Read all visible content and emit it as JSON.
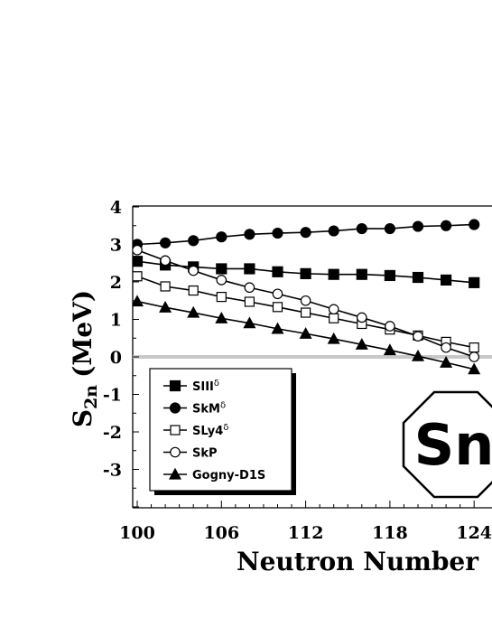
{
  "chart_data": {
    "type": "line",
    "xlabel": "Neutron Number",
    "ylabel": "S",
    "ylabel_sub": "2n",
    "ylabel_unit": "(MeV)",
    "xlim": [
      100,
      123
    ],
    "ylim": [
      -4,
      4
    ],
    "xticks": [
      100,
      106,
      112,
      118,
      124
    ],
    "xtick_labels": [
      "100",
      "106",
      "112",
      "118",
      "124"
    ],
    "yticks": [
      -3,
      -2,
      -1,
      0,
      1,
      2,
      3,
      4
    ],
    "ytick_labels": [
      "-3",
      "-2",
      "-1",
      "0",
      "1",
      "2",
      "3",
      "4"
    ],
    "zero_line": true,
    "legend_position": "lower-left",
    "badge": "Sn",
    "series": [
      {
        "name": "SIII",
        "name_sup": "δ",
        "marker": "square-filled",
        "x": [
          100,
          102,
          104,
          106,
          108,
          110,
          112,
          114,
          116,
          118,
          120,
          122,
          124
        ],
        "y": [
          2.55,
          2.45,
          2.4,
          2.35,
          2.35,
          2.27,
          2.22,
          2.2,
          2.2,
          2.17,
          2.12,
          2.05,
          1.98
        ]
      },
      {
        "name": "SkM",
        "name_sup": "δ",
        "marker": "circle-filled",
        "x": [
          100,
          102,
          104,
          106,
          108,
          110,
          112,
          114,
          116,
          118,
          120,
          122,
          124
        ],
        "y": [
          3.0,
          3.04,
          3.1,
          3.2,
          3.27,
          3.3,
          3.32,
          3.36,
          3.42,
          3.42,
          3.48,
          3.5,
          3.53
        ]
      },
      {
        "name": "SLy4",
        "name_sup": "δ",
        "marker": "square-open",
        "x": [
          100,
          102,
          104,
          106,
          108,
          110,
          112,
          114,
          116,
          118,
          120,
          122,
          124
        ],
        "y": [
          2.15,
          1.88,
          1.77,
          1.6,
          1.47,
          1.33,
          1.18,
          1.03,
          0.88,
          0.73,
          0.57,
          0.4,
          0.25
        ]
      },
      {
        "name": "SkP",
        "name_sup": "",
        "marker": "circle-open",
        "x": [
          100,
          102,
          104,
          106,
          108,
          110,
          112,
          114,
          116,
          118,
          120,
          122,
          124
        ],
        "y": [
          2.85,
          2.57,
          2.3,
          2.05,
          1.85,
          1.68,
          1.5,
          1.27,
          1.05,
          0.82,
          0.55,
          0.25,
          0.0
        ]
      },
      {
        "name": "Gogny-D1S",
        "name_sup": "",
        "marker": "triangle-filled",
        "x": [
          100,
          102,
          104,
          106,
          108,
          110,
          112,
          114,
          116,
          118,
          120,
          122,
          124
        ],
        "y": [
          1.48,
          1.32,
          1.18,
          1.03,
          0.9,
          0.75,
          0.62,
          0.48,
          0.33,
          0.18,
          0.02,
          -0.15,
          -0.33
        ]
      }
    ]
  }
}
